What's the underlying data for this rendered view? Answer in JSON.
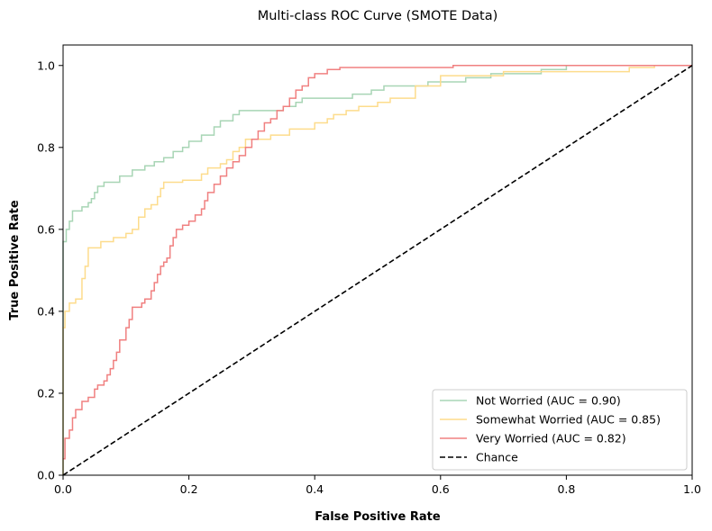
{
  "chart_data": {
    "type": "line",
    "title": "Multi-class ROC Curve (SMOTE Data)",
    "xlabel": "False Positive Rate",
    "ylabel": "True Positive Rate",
    "xlim": [
      0.0,
      1.0
    ],
    "ylim": [
      0.0,
      1.05
    ],
    "xticks": [
      "0.0",
      "0.2",
      "0.4",
      "0.6",
      "0.8",
      "1.0"
    ],
    "yticks": [
      "0.0",
      "0.2",
      "0.4",
      "0.6",
      "0.8",
      "1.0"
    ],
    "grid": false,
    "legend_position": "lower-right",
    "series": [
      {
        "name": "Not Worried (AUC = 0.90)",
        "color": "#a8d5b5",
        "dash": "solid",
        "points": [
          [
            0,
            0
          ],
          [
            0,
            0.57
          ],
          [
            0.005,
            0.57
          ],
          [
            0.005,
            0.6
          ],
          [
            0.01,
            0.6
          ],
          [
            0.01,
            0.62
          ],
          [
            0.015,
            0.62
          ],
          [
            0.015,
            0.645
          ],
          [
            0.03,
            0.645
          ],
          [
            0.03,
            0.655
          ],
          [
            0.04,
            0.655
          ],
          [
            0.04,
            0.665
          ],
          [
            0.045,
            0.665
          ],
          [
            0.045,
            0.675
          ],
          [
            0.05,
            0.675
          ],
          [
            0.05,
            0.69
          ],
          [
            0.055,
            0.69
          ],
          [
            0.055,
            0.705
          ],
          [
            0.065,
            0.705
          ],
          [
            0.065,
            0.715
          ],
          [
            0.09,
            0.715
          ],
          [
            0.09,
            0.73
          ],
          [
            0.11,
            0.73
          ],
          [
            0.11,
            0.745
          ],
          [
            0.13,
            0.745
          ],
          [
            0.13,
            0.755
          ],
          [
            0.145,
            0.755
          ],
          [
            0.145,
            0.765
          ],
          [
            0.16,
            0.765
          ],
          [
            0.16,
            0.775
          ],
          [
            0.175,
            0.775
          ],
          [
            0.175,
            0.79
          ],
          [
            0.19,
            0.79
          ],
          [
            0.19,
            0.8
          ],
          [
            0.2,
            0.8
          ],
          [
            0.2,
            0.815
          ],
          [
            0.22,
            0.815
          ],
          [
            0.22,
            0.83
          ],
          [
            0.24,
            0.83
          ],
          [
            0.24,
            0.85
          ],
          [
            0.25,
            0.85
          ],
          [
            0.25,
            0.865
          ],
          [
            0.27,
            0.865
          ],
          [
            0.27,
            0.88
          ],
          [
            0.28,
            0.88
          ],
          [
            0.28,
            0.89
          ],
          [
            0.35,
            0.89
          ],
          [
            0.35,
            0.9
          ],
          [
            0.37,
            0.9
          ],
          [
            0.37,
            0.91
          ],
          [
            0.38,
            0.91
          ],
          [
            0.38,
            0.92
          ],
          [
            0.46,
            0.92
          ],
          [
            0.46,
            0.93
          ],
          [
            0.49,
            0.93
          ],
          [
            0.49,
            0.94
          ],
          [
            0.51,
            0.94
          ],
          [
            0.51,
            0.95
          ],
          [
            0.58,
            0.95
          ],
          [
            0.58,
            0.96
          ],
          [
            0.64,
            0.96
          ],
          [
            0.64,
            0.97
          ],
          [
            0.68,
            0.97
          ],
          [
            0.68,
            0.98
          ],
          [
            0.76,
            0.98
          ],
          [
            0.76,
            0.99
          ],
          [
            0.8,
            0.99
          ],
          [
            0.8,
            1.0
          ],
          [
            1.0,
            1.0
          ]
        ]
      },
      {
        "name": "Somewhat Worried (AUC = 0.85)",
        "color": "#fddc8c",
        "dash": "solid",
        "points": [
          [
            0,
            0
          ],
          [
            0,
            0.36
          ],
          [
            0.003,
            0.36
          ],
          [
            0.003,
            0.4
          ],
          [
            0.01,
            0.4
          ],
          [
            0.01,
            0.42
          ],
          [
            0.02,
            0.42
          ],
          [
            0.02,
            0.43
          ],
          [
            0.03,
            0.43
          ],
          [
            0.03,
            0.48
          ],
          [
            0.035,
            0.48
          ],
          [
            0.035,
            0.51
          ],
          [
            0.04,
            0.51
          ],
          [
            0.04,
            0.555
          ],
          [
            0.06,
            0.555
          ],
          [
            0.06,
            0.57
          ],
          [
            0.08,
            0.57
          ],
          [
            0.08,
            0.58
          ],
          [
            0.1,
            0.58
          ],
          [
            0.1,
            0.59
          ],
          [
            0.11,
            0.59
          ],
          [
            0.11,
            0.6
          ],
          [
            0.12,
            0.6
          ],
          [
            0.12,
            0.63
          ],
          [
            0.13,
            0.63
          ],
          [
            0.13,
            0.65
          ],
          [
            0.14,
            0.65
          ],
          [
            0.14,
            0.66
          ],
          [
            0.15,
            0.66
          ],
          [
            0.15,
            0.68
          ],
          [
            0.155,
            0.68
          ],
          [
            0.155,
            0.7
          ],
          [
            0.16,
            0.7
          ],
          [
            0.16,
            0.715
          ],
          [
            0.19,
            0.715
          ],
          [
            0.19,
            0.72
          ],
          [
            0.22,
            0.72
          ],
          [
            0.22,
            0.735
          ],
          [
            0.23,
            0.735
          ],
          [
            0.23,
            0.75
          ],
          [
            0.25,
            0.75
          ],
          [
            0.25,
            0.76
          ],
          [
            0.26,
            0.76
          ],
          [
            0.26,
            0.77
          ],
          [
            0.27,
            0.77
          ],
          [
            0.27,
            0.79
          ],
          [
            0.28,
            0.79
          ],
          [
            0.28,
            0.8
          ],
          [
            0.29,
            0.8
          ],
          [
            0.29,
            0.82
          ],
          [
            0.33,
            0.82
          ],
          [
            0.33,
            0.83
          ],
          [
            0.36,
            0.83
          ],
          [
            0.36,
            0.845
          ],
          [
            0.4,
            0.845
          ],
          [
            0.4,
            0.86
          ],
          [
            0.42,
            0.86
          ],
          [
            0.42,
            0.87
          ],
          [
            0.43,
            0.87
          ],
          [
            0.43,
            0.88
          ],
          [
            0.45,
            0.88
          ],
          [
            0.45,
            0.89
          ],
          [
            0.47,
            0.89
          ],
          [
            0.47,
            0.9
          ],
          [
            0.5,
            0.9
          ],
          [
            0.5,
            0.91
          ],
          [
            0.52,
            0.91
          ],
          [
            0.52,
            0.92
          ],
          [
            0.56,
            0.92
          ],
          [
            0.56,
            0.95
          ],
          [
            0.6,
            0.95
          ],
          [
            0.6,
            0.975
          ],
          [
            0.7,
            0.975
          ],
          [
            0.7,
            0.985
          ],
          [
            0.9,
            0.985
          ],
          [
            0.9,
            0.995
          ],
          [
            0.94,
            0.995
          ],
          [
            0.94,
            1.0
          ],
          [
            1.0,
            1.0
          ]
        ]
      },
      {
        "name": "Very Worried (AUC = 0.82)",
        "color": "#f08080",
        "dash": "solid",
        "points": [
          [
            0,
            0.04
          ],
          [
            0.003,
            0.04
          ],
          [
            0.003,
            0.09
          ],
          [
            0.01,
            0.09
          ],
          [
            0.01,
            0.11
          ],
          [
            0.015,
            0.11
          ],
          [
            0.015,
            0.14
          ],
          [
            0.02,
            0.14
          ],
          [
            0.02,
            0.16
          ],
          [
            0.03,
            0.16
          ],
          [
            0.03,
            0.18
          ],
          [
            0.04,
            0.18
          ],
          [
            0.04,
            0.19
          ],
          [
            0.05,
            0.19
          ],
          [
            0.05,
            0.21
          ],
          [
            0.055,
            0.21
          ],
          [
            0.055,
            0.22
          ],
          [
            0.065,
            0.22
          ],
          [
            0.065,
            0.23
          ],
          [
            0.07,
            0.23
          ],
          [
            0.07,
            0.245
          ],
          [
            0.075,
            0.245
          ],
          [
            0.075,
            0.26
          ],
          [
            0.08,
            0.26
          ],
          [
            0.08,
            0.28
          ],
          [
            0.085,
            0.28
          ],
          [
            0.085,
            0.3
          ],
          [
            0.09,
            0.3
          ],
          [
            0.09,
            0.33
          ],
          [
            0.1,
            0.33
          ],
          [
            0.1,
            0.36
          ],
          [
            0.105,
            0.36
          ],
          [
            0.105,
            0.38
          ],
          [
            0.11,
            0.38
          ],
          [
            0.11,
            0.41
          ],
          [
            0.125,
            0.41
          ],
          [
            0.125,
            0.42
          ],
          [
            0.13,
            0.42
          ],
          [
            0.13,
            0.43
          ],
          [
            0.14,
            0.43
          ],
          [
            0.14,
            0.45
          ],
          [
            0.145,
            0.45
          ],
          [
            0.145,
            0.47
          ],
          [
            0.15,
            0.47
          ],
          [
            0.15,
            0.49
          ],
          [
            0.155,
            0.49
          ],
          [
            0.155,
            0.51
          ],
          [
            0.16,
            0.51
          ],
          [
            0.16,
            0.52
          ],
          [
            0.165,
            0.52
          ],
          [
            0.165,
            0.53
          ],
          [
            0.17,
            0.53
          ],
          [
            0.17,
            0.56
          ],
          [
            0.175,
            0.56
          ],
          [
            0.175,
            0.58
          ],
          [
            0.18,
            0.58
          ],
          [
            0.18,
            0.6
          ],
          [
            0.19,
            0.6
          ],
          [
            0.19,
            0.61
          ],
          [
            0.2,
            0.61
          ],
          [
            0.2,
            0.62
          ],
          [
            0.21,
            0.62
          ],
          [
            0.21,
            0.635
          ],
          [
            0.22,
            0.635
          ],
          [
            0.22,
            0.65
          ],
          [
            0.225,
            0.65
          ],
          [
            0.225,
            0.67
          ],
          [
            0.23,
            0.67
          ],
          [
            0.23,
            0.69
          ],
          [
            0.24,
            0.69
          ],
          [
            0.24,
            0.71
          ],
          [
            0.25,
            0.71
          ],
          [
            0.25,
            0.73
          ],
          [
            0.26,
            0.73
          ],
          [
            0.26,
            0.75
          ],
          [
            0.27,
            0.75
          ],
          [
            0.27,
            0.765
          ],
          [
            0.28,
            0.765
          ],
          [
            0.28,
            0.78
          ],
          [
            0.29,
            0.78
          ],
          [
            0.29,
            0.8
          ],
          [
            0.3,
            0.8
          ],
          [
            0.3,
            0.82
          ],
          [
            0.31,
            0.82
          ],
          [
            0.31,
            0.84
          ],
          [
            0.32,
            0.84
          ],
          [
            0.32,
            0.86
          ],
          [
            0.33,
            0.86
          ],
          [
            0.33,
            0.87
          ],
          [
            0.34,
            0.87
          ],
          [
            0.34,
            0.89
          ],
          [
            0.35,
            0.89
          ],
          [
            0.35,
            0.9
          ],
          [
            0.36,
            0.9
          ],
          [
            0.36,
            0.92
          ],
          [
            0.37,
            0.92
          ],
          [
            0.37,
            0.94
          ],
          [
            0.38,
            0.94
          ],
          [
            0.38,
            0.95
          ],
          [
            0.39,
            0.95
          ],
          [
            0.39,
            0.97
          ],
          [
            0.4,
            0.97
          ],
          [
            0.4,
            0.98
          ],
          [
            0.42,
            0.98
          ],
          [
            0.42,
            0.99
          ],
          [
            0.44,
            0.99
          ],
          [
            0.44,
            0.995
          ],
          [
            0.62,
            0.995
          ],
          [
            0.62,
            1.0
          ],
          [
            1.0,
            1.0
          ]
        ]
      },
      {
        "name": "Chance",
        "color": "#000000",
        "dash": "dashed",
        "points": [
          [
            0,
            0
          ],
          [
            1,
            1
          ]
        ]
      }
    ]
  }
}
